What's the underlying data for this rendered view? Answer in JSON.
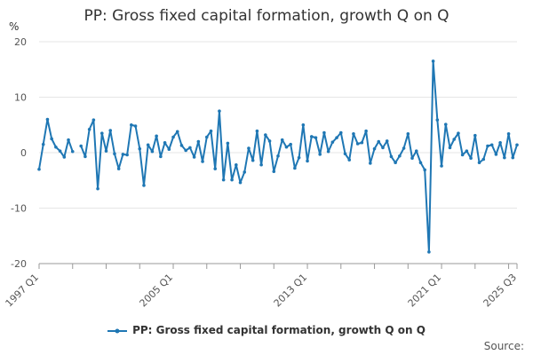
{
  "chart_data": {
    "type": "line",
    "title": "PP: Gross fixed capital formation, growth Q on Q",
    "ylabel": "%",
    "xlabel": "",
    "ylim": [
      -20,
      20
    ],
    "yticks": [
      -20,
      -10,
      0,
      10,
      20
    ],
    "grid": true,
    "legend_position": "bottom",
    "start_period": "1997 Q1",
    "end_period": "2025 Q3",
    "xtick_labels": [
      {
        "index": 0,
        "label": "1997 Q1"
      },
      {
        "index": 32,
        "label": "2005 Q1"
      },
      {
        "index": 64,
        "label": "2013 Q1"
      },
      {
        "index": 96,
        "label": "2021 Q1"
      },
      {
        "index": 114,
        "label": "2025 Q3"
      }
    ],
    "series": [
      {
        "name": "PP: Gross fixed capital formation, growth Q on Q",
        "color": "#1f77b4",
        "values": [
          -3.0,
          1.5,
          6.0,
          2.5,
          1.0,
          0.3,
          -0.8,
          2.3,
          0.2,
          null,
          1.2,
          -0.7,
          4.2,
          5.9,
          -6.5,
          3.5,
          0.3,
          4.0,
          -0.2,
          -2.9,
          -0.3,
          -0.4,
          5.0,
          4.8,
          0.7,
          -5.9,
          1.4,
          0.2,
          3.0,
          -0.7,
          1.8,
          0.6,
          2.8,
          3.8,
          1.3,
          0.4,
          0.9,
          -0.8,
          2.0,
          -1.6,
          2.8,
          3.9,
          -2.9,
          7.5,
          -4.9,
          1.7,
          -4.9,
          -2.2,
          -5.4,
          -3.5,
          0.8,
          -1.4,
          3.9,
          -2.2,
          3.2,
          2.1,
          -3.4,
          -0.6,
          2.3,
          1.0,
          1.5,
          -2.8,
          -0.9,
          5.0,
          -1.5,
          2.9,
          2.7,
          -0.3,
          3.6,
          0.2,
          1.9,
          2.7,
          3.6,
          -0.2,
          -1.3,
          3.4,
          1.6,
          1.8,
          3.9,
          -1.9,
          0.7,
          2.0,
          0.9,
          2.1,
          -0.7,
          -1.8,
          -0.6,
          0.8,
          3.4,
          -1.0,
          0.3,
          -1.8,
          -3.1,
          -17.9,
          16.5,
          5.9,
          -2.4,
          5.1,
          0.9,
          2.4,
          3.5,
          -0.4,
          0.3,
          -1.0,
          3.1,
          -1.8,
          -1.2,
          1.2,
          1.4,
          -0.3,
          1.8,
          -0.9,
          3.4,
          -0.9,
          1.4
        ]
      }
    ]
  },
  "legend": {
    "label": "PP: Gross fixed capital formation, growth Q on Q"
  },
  "source_label": "Source:"
}
